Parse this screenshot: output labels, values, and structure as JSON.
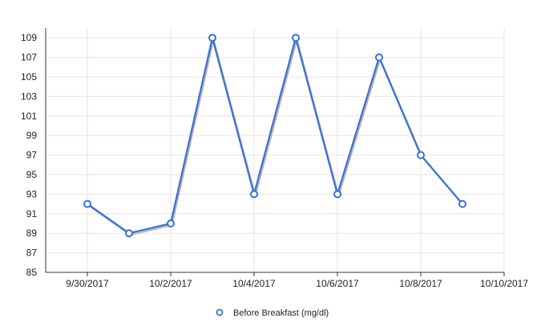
{
  "chart_data": {
    "type": "line",
    "title": "",
    "xlabel": "",
    "ylabel": "",
    "x": [
      "2017-09-30",
      "2017-10-01",
      "2017-10-02",
      "2017-10-03",
      "2017-10-04",
      "2017-10-05",
      "2017-10-06",
      "2017-10-07",
      "2017-10-08",
      "2017-10-09"
    ],
    "series": [
      {
        "name": "Before Breakfast (mg/dl)",
        "values": [
          92,
          89,
          90,
          109,
          93,
          109,
          93,
          107,
          97,
          92
        ],
        "color": "#3a6fd8",
        "marker": "hollow-circle"
      }
    ],
    "ylim": [
      85,
      110
    ],
    "yticks": [
      85,
      87,
      89,
      91,
      93,
      95,
      97,
      99,
      101,
      103,
      105,
      107,
      109
    ],
    "xlim": [
      "2017-09-29",
      "2017-10-10"
    ],
    "xticks": [
      "9/30/2017",
      "10/2/2017",
      "10/4/2017",
      "10/6/2017",
      "10/8/2017",
      "10/10/2017"
    ],
    "grid": true,
    "legend_position": "bottom"
  }
}
